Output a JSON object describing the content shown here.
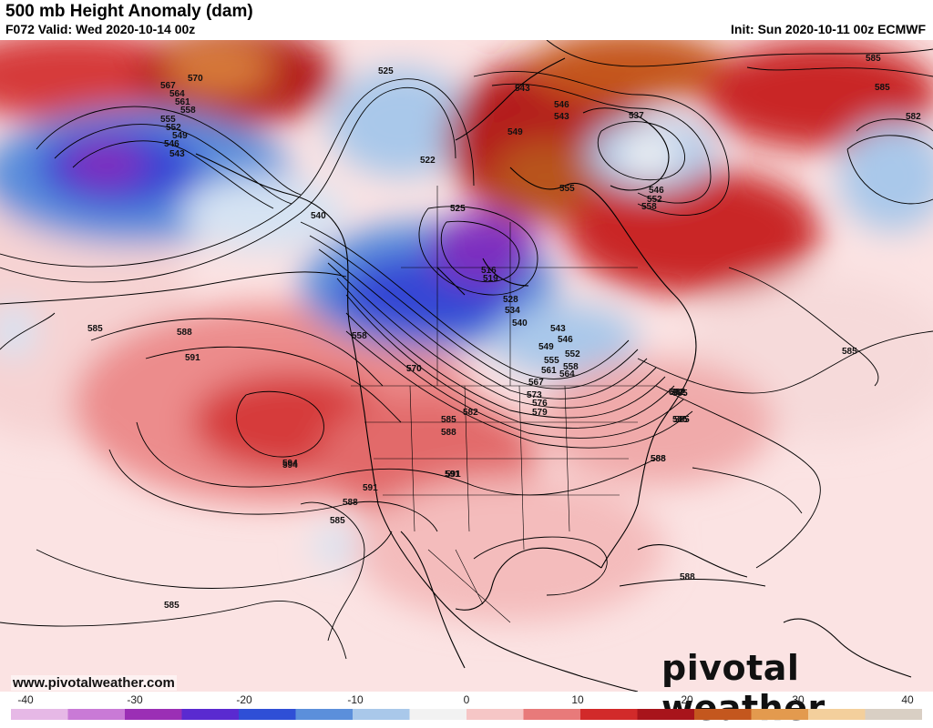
{
  "header": {
    "title": "500 mb Height Anomaly (dam)",
    "valid": "F072 Valid: Wed 2020-10-14 00z",
    "init": "Init: Sun 2020-10-11 00z ECMWF"
  },
  "footer": {
    "website": "www.pivotalweather.com",
    "brand": "pivotal weather"
  },
  "colorbar": {
    "ticks": [
      "-40",
      "-30",
      "-20",
      "-10",
      "0",
      "10",
      "20",
      "30",
      "40"
    ],
    "colors": [
      "#e6b8e6",
      "#c97ad6",
      "#9b2fb5",
      "#5a2ad0",
      "#2f4fd6",
      "#5b8fdb",
      "#a9c8ea",
      "#f2f2f2",
      "#f6c6c6",
      "#e87a7a",
      "#d22a2a",
      "#a8141b",
      "#c4571e",
      "#e39a4e",
      "#f3cf9c",
      "#d9cfc4"
    ]
  },
  "contour_labels": [
    "570",
    "567",
    "564",
    "561",
    "558",
    "555",
    "552",
    "549",
    "546",
    "543",
    "540",
    "525",
    "522",
    "525",
    "516",
    "519",
    "528",
    "534",
    "540",
    "543",
    "546",
    "549",
    "552",
    "555",
    "558",
    "561",
    "564",
    "567",
    "570",
    "573",
    "576",
    "579",
    "582",
    "585",
    "588",
    "591",
    "594",
    "543",
    "549",
    "546",
    "543",
    "537",
    "546",
    "552",
    "555",
    "558",
    "585",
    "585",
    "582",
    "585",
    "585",
    "585",
    "588",
    "591",
    "594",
    "588",
    "591",
    "588",
    "585",
    "585",
    "585",
    "582",
    "585",
    "588",
    "588",
    "558",
    "570",
    "591",
    "582"
  ]
}
